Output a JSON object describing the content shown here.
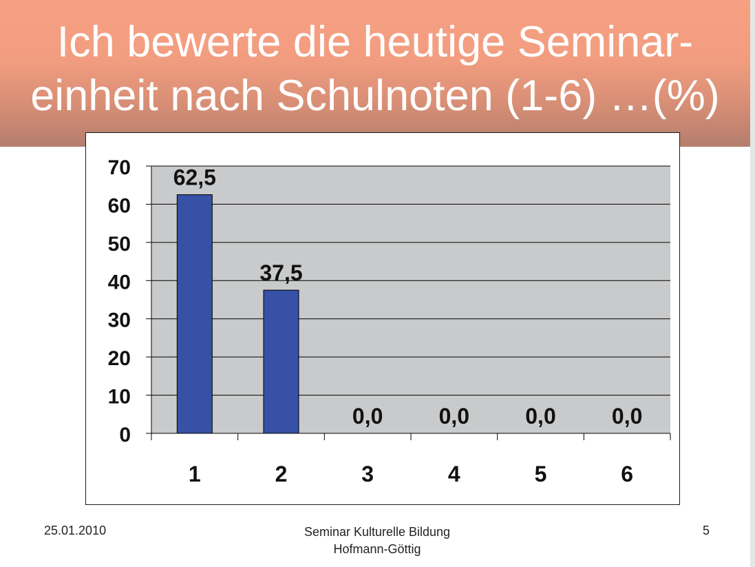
{
  "slide": {
    "title_line1": "Ich bewerte die heutige Seminar-",
    "title_line2": "einheit nach Schulnoten (1-6) …(%)",
    "footer_date": "25.01.2010",
    "footer_center_line1": "Seminar Kulturelle Bildung",
    "footer_center_line2": "Hofmann-Göttig",
    "page_number": "5"
  },
  "colors": {
    "bar": "#3651a5",
    "plot_background": "#c9cacb",
    "title_band": "#f29d80"
  },
  "chart_data": {
    "type": "bar",
    "categories": [
      "1",
      "2",
      "3",
      "4",
      "5",
      "6"
    ],
    "values": [
      62.5,
      37.5,
      0.0,
      0.0,
      0.0,
      0.0
    ],
    "data_labels": [
      "62,5",
      "37,5",
      "0,0",
      "0,0",
      "0,0",
      "0,0"
    ],
    "yticks": [
      "0",
      "10",
      "20",
      "30",
      "40",
      "50",
      "60",
      "70"
    ],
    "ylim": [
      0,
      70
    ],
    "grid": true,
    "legend": false
  }
}
